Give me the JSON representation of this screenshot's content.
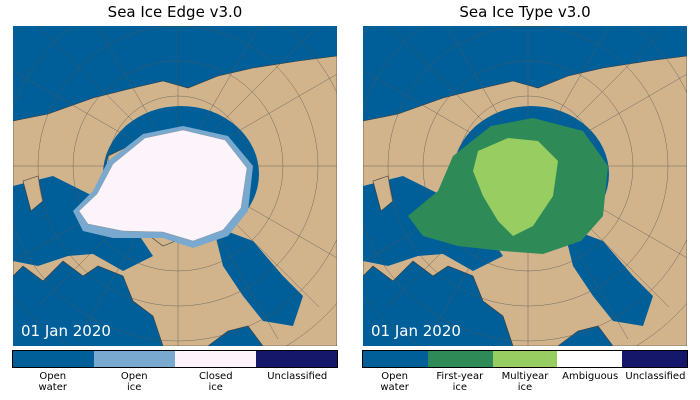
{
  "panels": [
    {
      "title": "Sea Ice Edge v3.0",
      "date": "01 Jan 2020",
      "legend": [
        {
          "label": "Open\nwater",
          "color": "#005f99"
        },
        {
          "label": "Open\nice",
          "color": "#79a9cf"
        },
        {
          "label": "Closed\nice",
          "color": "#fdf4fb"
        },
        {
          "label": "Unclassified",
          "color": "#15176a"
        }
      ]
    },
    {
      "title": "Sea Ice Type v3.0",
      "date": "01 Jan 2020",
      "legend": [
        {
          "label": "Open\nwater",
          "color": "#005f99"
        },
        {
          "label": "First-year\nice",
          "color": "#2e8b57"
        },
        {
          "label": "Multiyear\nice",
          "color": "#98cd61"
        },
        {
          "label": "Ambiguous",
          "color": "#ffffff"
        },
        {
          "label": "Unclassified",
          "color": "#15176a"
        }
      ]
    }
  ]
}
